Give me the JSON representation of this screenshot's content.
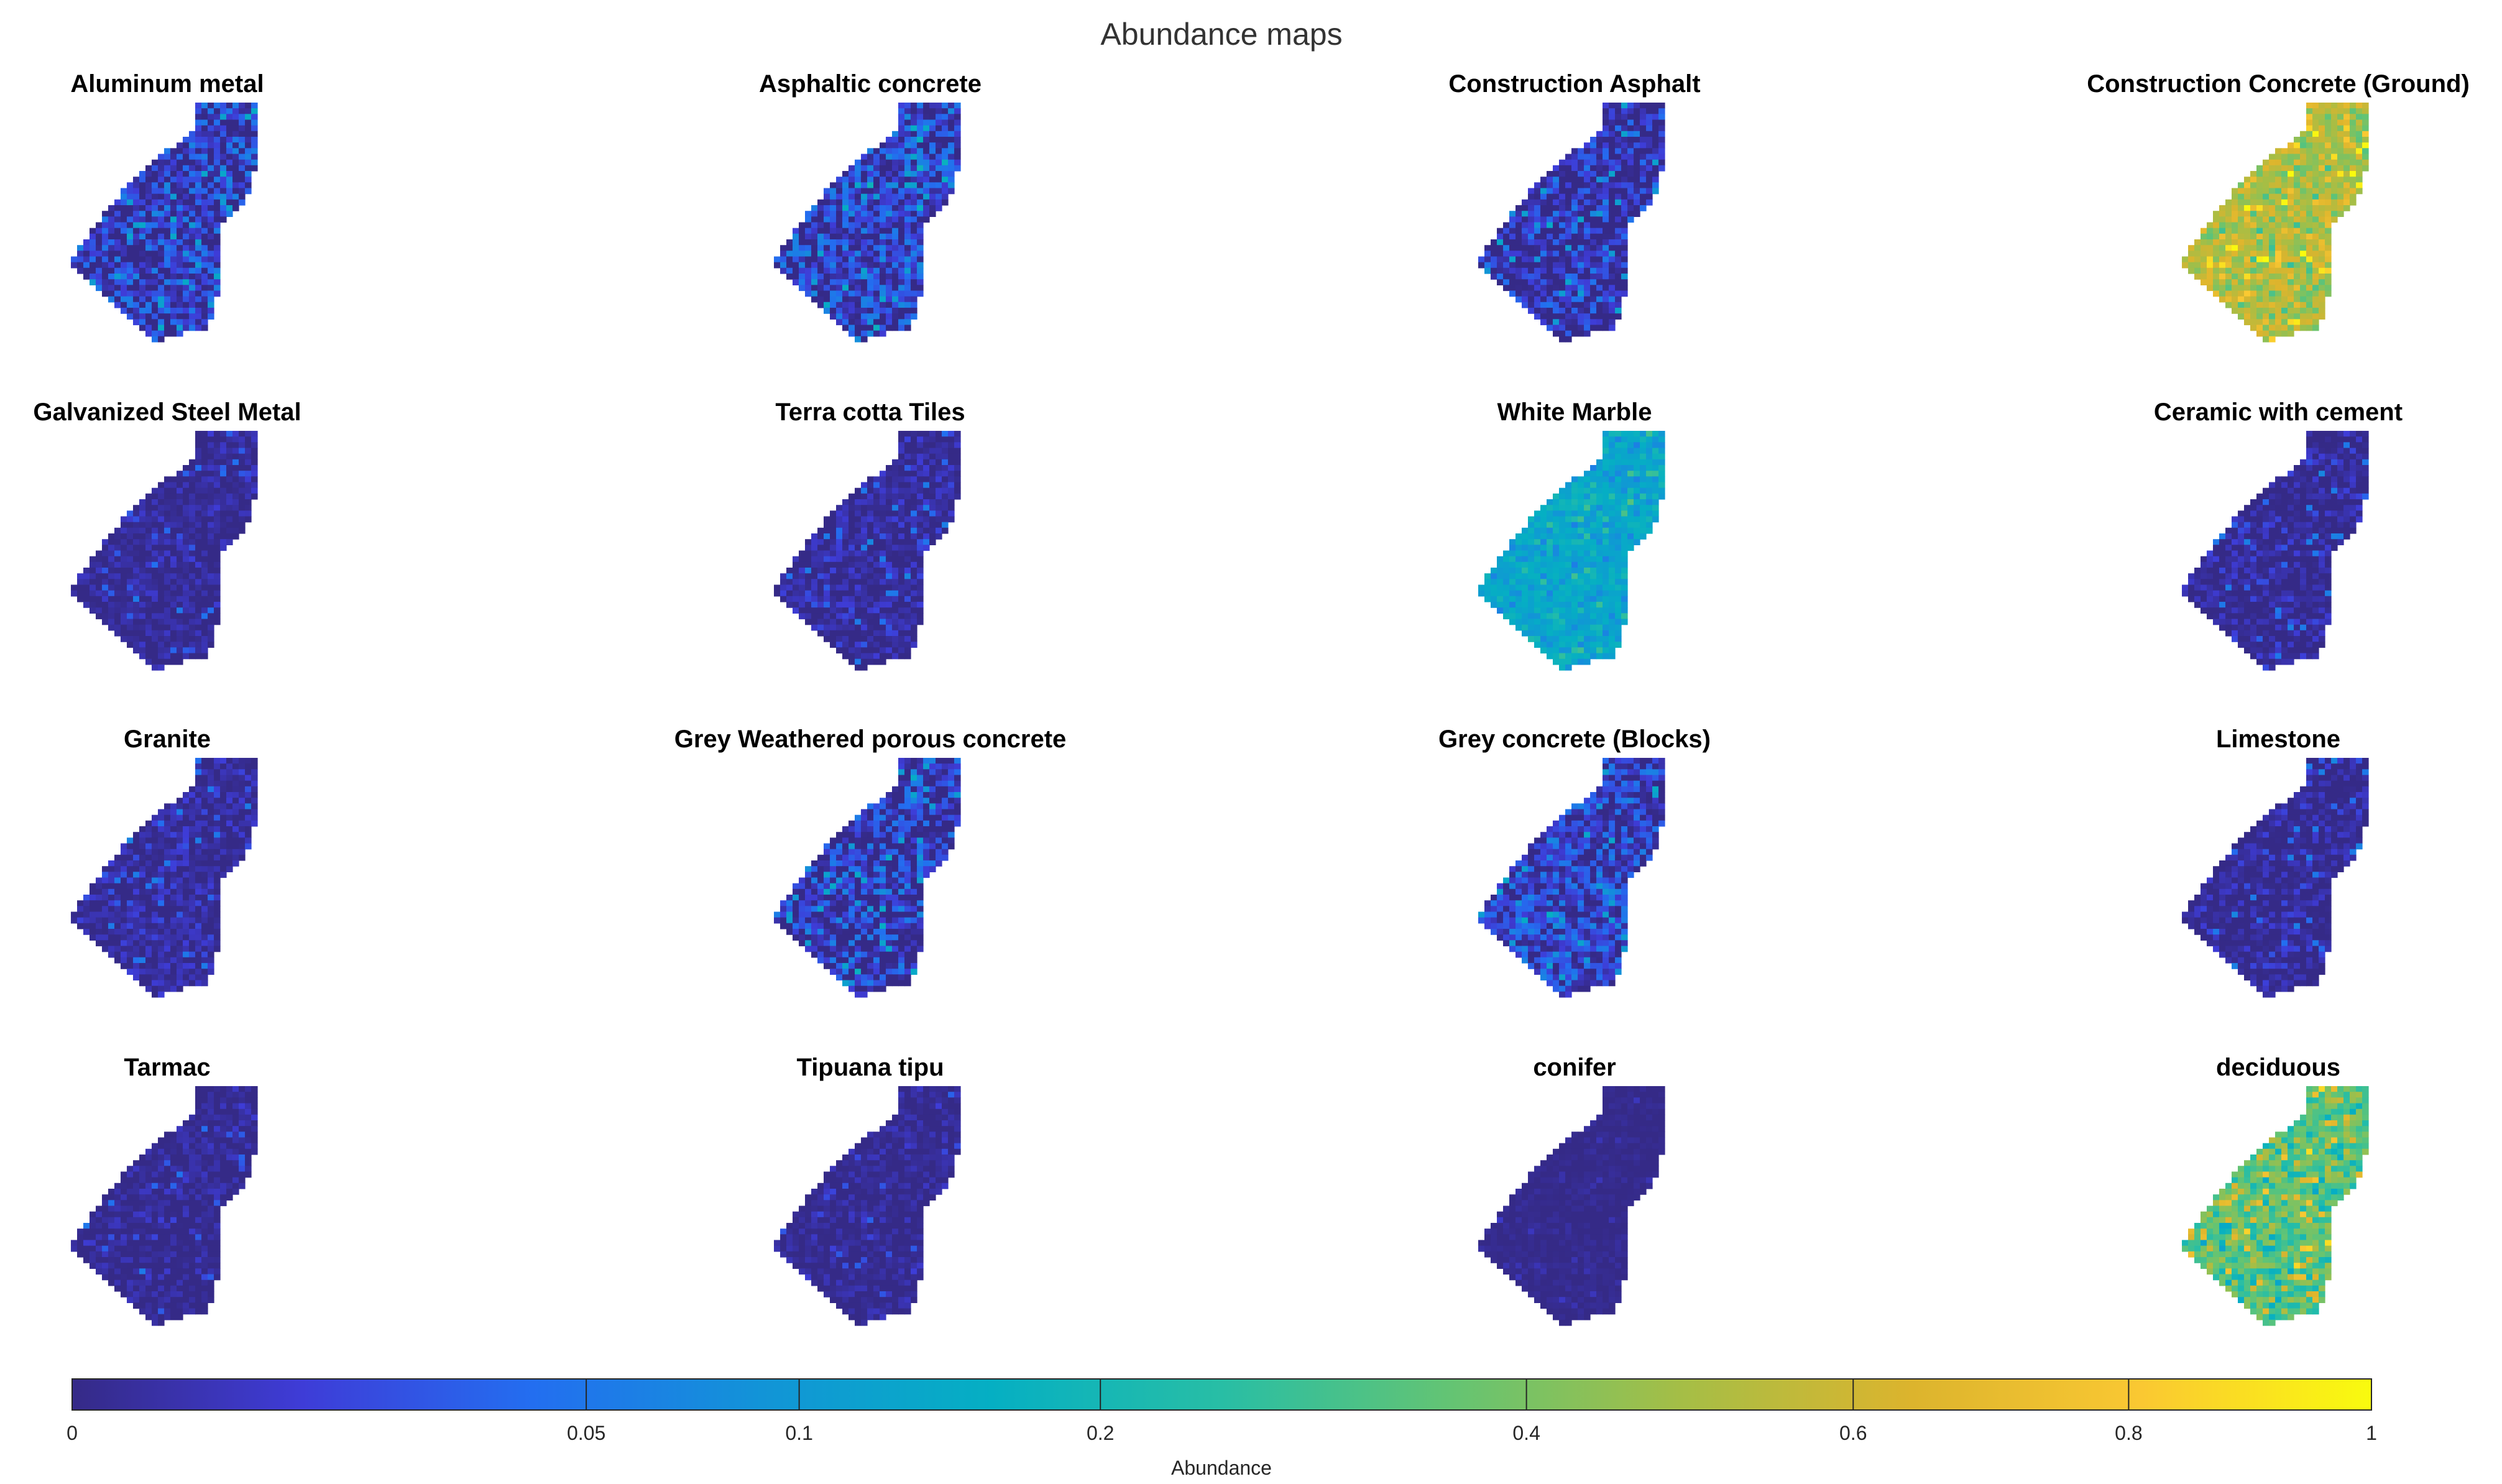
{
  "chart_data": {
    "type": "heatmap",
    "title": "Abundance maps",
    "layout": {
      "rows": 4,
      "cols": 4
    },
    "colormap": "parula",
    "maps": [
      {
        "name": "Aluminum metal",
        "base": 0.015,
        "noise": 0.045,
        "hot": 0.0
      },
      {
        "name": "Asphaltic concrete",
        "base": 0.02,
        "noise": 0.05,
        "hot": 0.0
      },
      {
        "name": "Construction Asphalt",
        "base": 0.01,
        "noise": 0.04,
        "hot": 0.0
      },
      {
        "name": "Construction Concrete (Ground)",
        "base": 0.52,
        "noise": 0.18,
        "hot": 0.04
      },
      {
        "name": "Galvanized Steel Metal",
        "base": 0.003,
        "noise": 0.015,
        "hot": 0.0
      },
      {
        "name": "Terra cotta Tiles",
        "base": 0.004,
        "noise": 0.02,
        "hot": 0.0
      },
      {
        "name": "White Marble",
        "base": 0.14,
        "noise": 0.06,
        "hot": 0.0
      },
      {
        "name": "Ceramic with cement",
        "base": 0.003,
        "noise": 0.02,
        "hot": 0.0
      },
      {
        "name": "Granite",
        "base": 0.004,
        "noise": 0.02,
        "hot": 0.0
      },
      {
        "name": "Grey Weathered porous concrete",
        "base": 0.012,
        "noise": 0.05,
        "hot": 0.0
      },
      {
        "name": "Grey concrete (Blocks)",
        "base": 0.02,
        "noise": 0.04,
        "hot": 0.0
      },
      {
        "name": "Limestone",
        "base": 0.003,
        "noise": 0.02,
        "hot": 0.0
      },
      {
        "name": "Tarmac",
        "base": 0.002,
        "noise": 0.015,
        "hot": 0.0
      },
      {
        "name": "Tipuana tipu",
        "base": 0.002,
        "noise": 0.012,
        "hot": 0.0
      },
      {
        "name": "conifer",
        "base": 0.001,
        "noise": 0.005,
        "hot": 0.0
      },
      {
        "name": "deciduous",
        "base": 0.34,
        "noise": 0.16,
        "hot": 0.05
      }
    ],
    "colorbar": {
      "label": "Abundance",
      "ticks": [
        0,
        0.05,
        0.1,
        0.2,
        0.4,
        0.6,
        0.8,
        1
      ],
      "tick_labels": [
        "0",
        "0.05",
        "0.1",
        "0.2",
        "0.4",
        "0.6",
        "0.8",
        "1"
      ],
      "range": [
        0,
        1
      ],
      "location": "bottom"
    },
    "grid": false
  }
}
